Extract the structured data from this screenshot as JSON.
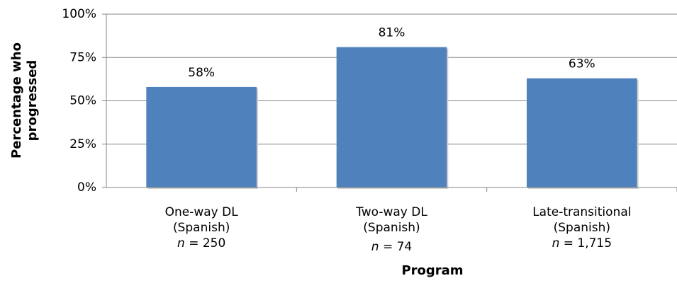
{
  "chart_data": {
    "type": "bar",
    "categories": [
      "One-way DL (Spanish)",
      "Two-way DL (Spanish)",
      "Late-transitional (Spanish)"
    ],
    "sample_size_labels": [
      [
        "n",
        " = 250"
      ],
      [
        "n",
        " = 74"
      ],
      [
        "n",
        " = 1,715"
      ]
    ],
    "values": [
      58,
      81,
      63
    ],
    "value_labels": [
      "58%",
      "81%",
      "63%"
    ],
    "color": "#4f81bd",
    "ylim": [
      0,
      100
    ],
    "yticks": [
      {
        "value": 0,
        "label": "0%"
      },
      {
        "value": 25,
        "label": "25%"
      },
      {
        "value": 50,
        "label": "50%"
      },
      {
        "value": 75,
        "label": "75%"
      },
      {
        "value": 100,
        "label": "100%"
      }
    ],
    "grid": true,
    "y_label": "Percentage who progressed",
    "x_label": "Program"
  }
}
